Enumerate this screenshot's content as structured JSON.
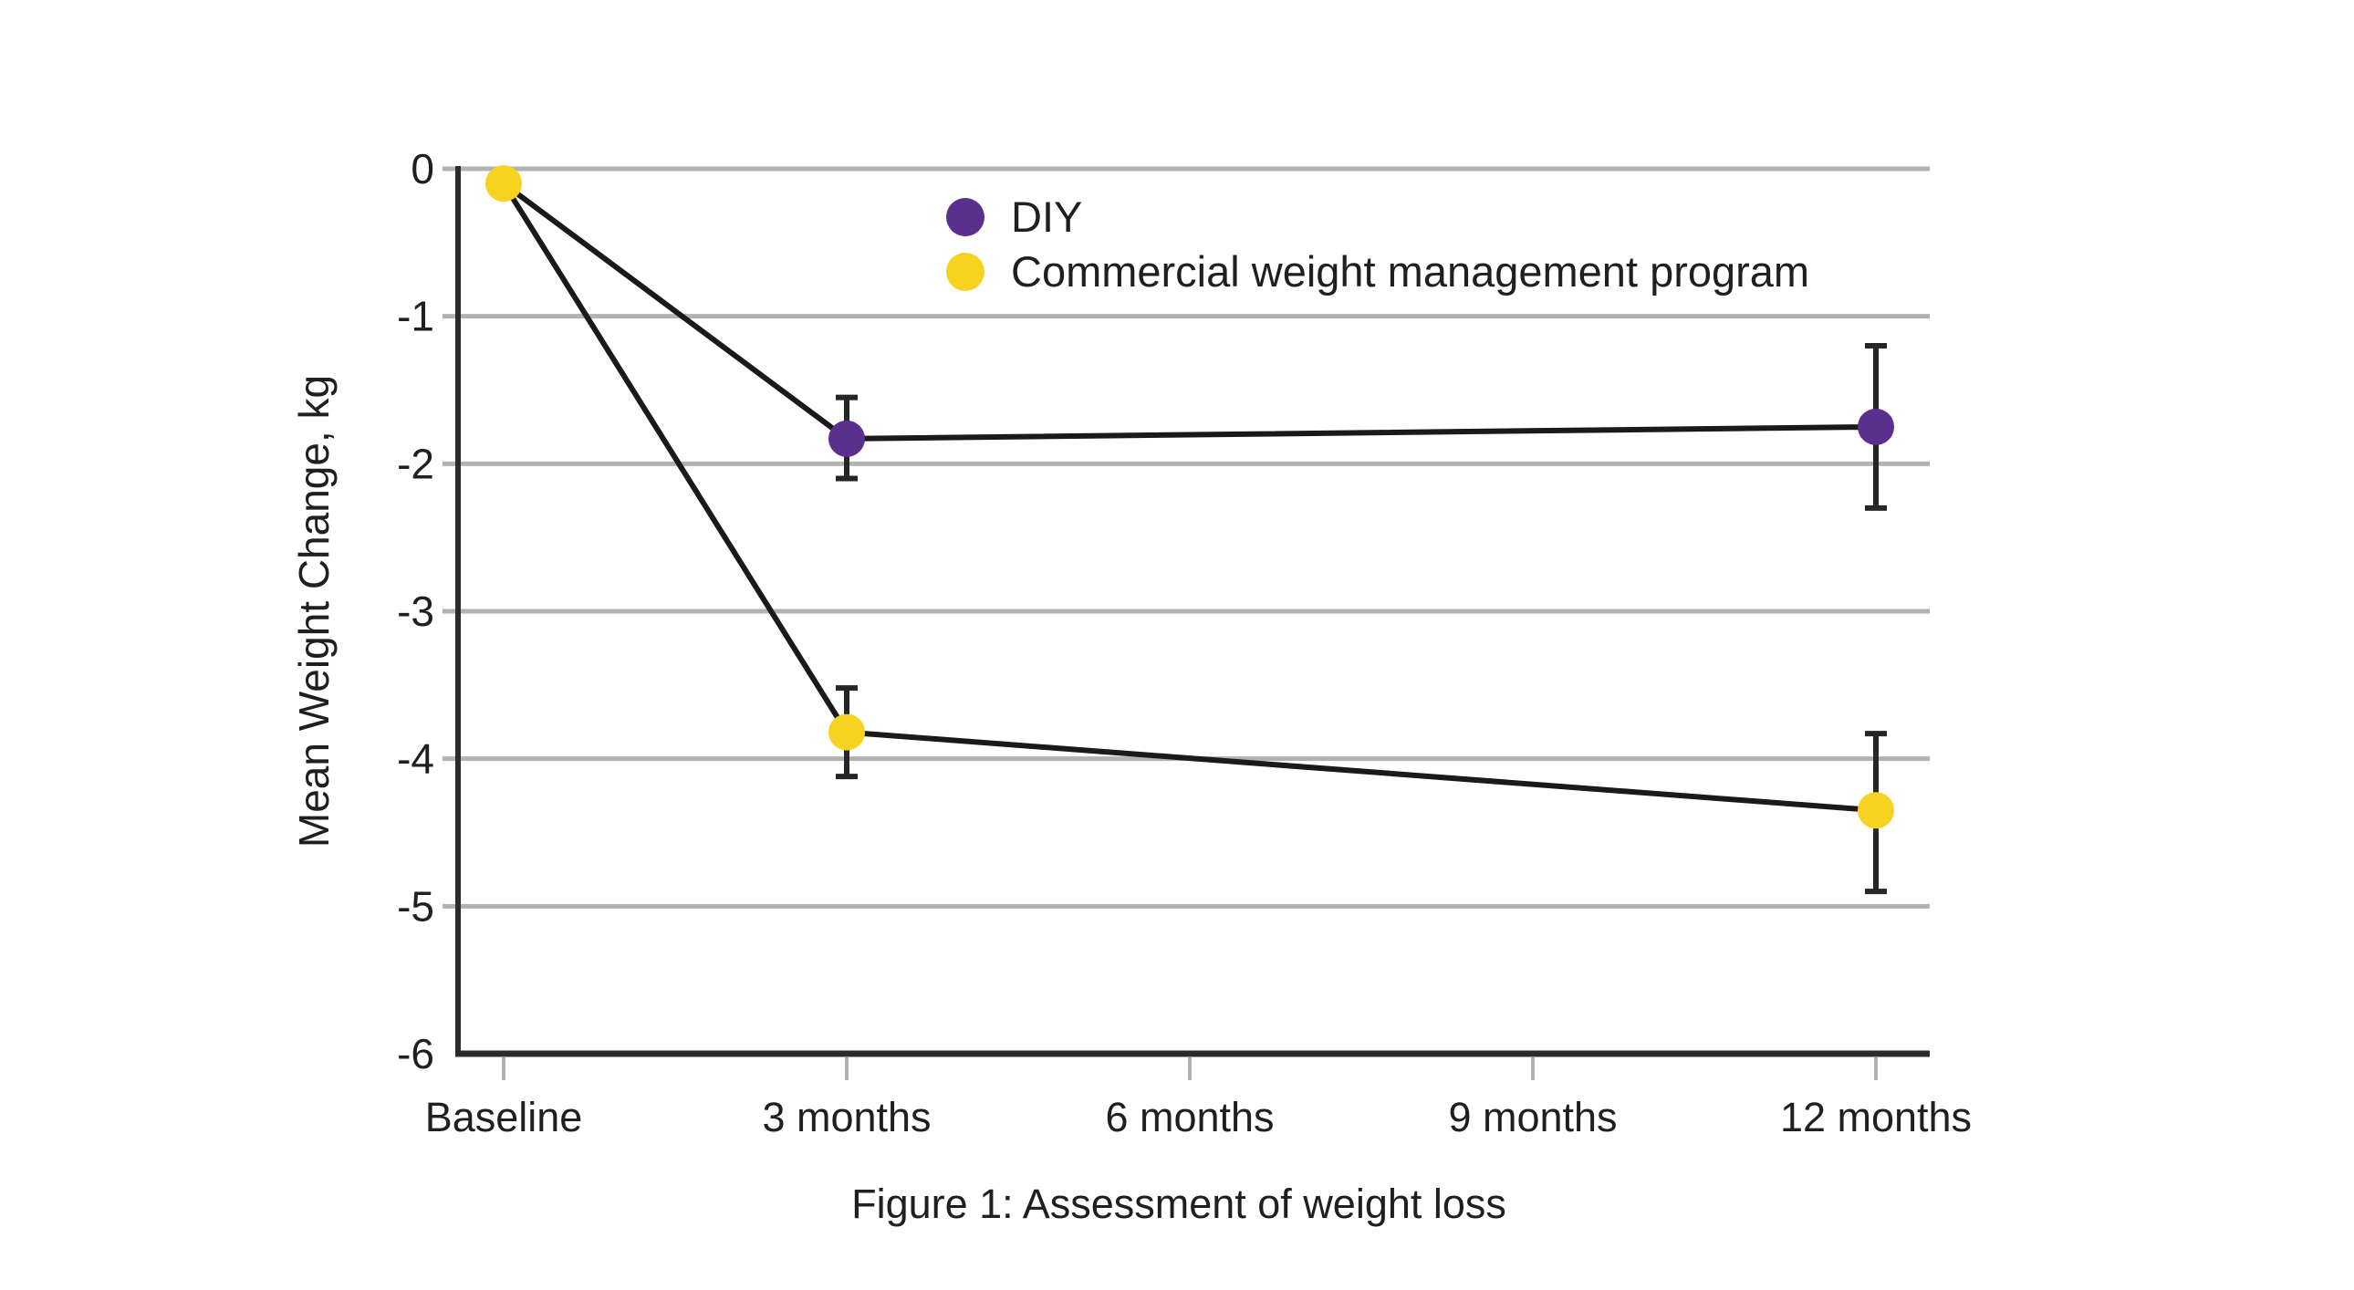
{
  "caption": "Figure 1: Assessment of weight loss",
  "chart_data": {
    "type": "line",
    "title": "Figure 1: Assessment of weight loss",
    "xlabel": "",
    "ylabel": "Mean Weight Change, kg",
    "categories": [
      "Baseline",
      "3 months",
      "6 months",
      "9 months",
      "12 months"
    ],
    "ylim": [
      -6,
      0
    ],
    "yticks": [
      0,
      -1,
      -2,
      -3,
      -4,
      -5,
      -6
    ],
    "ytick_labels": [
      "0",
      "-1",
      "-2",
      "-3",
      "-4",
      "-5",
      "-6"
    ],
    "grid": true,
    "legend_position": "inside-top-center",
    "series": [
      {
        "name": "DIY",
        "color": "#5a2f8d",
        "points": [
          {
            "category": "Baseline",
            "x_index": 0,
            "value": -0.1,
            "ci_high": null,
            "ci_low": null,
            "marker": false
          },
          {
            "category": "3 months",
            "x_index": 1,
            "value": -1.83,
            "ci_high": -1.55,
            "ci_low": -2.1,
            "marker": true
          },
          {
            "category": "12 months",
            "x_index": 4,
            "value": -1.75,
            "ci_high": -1.2,
            "ci_low": -2.3,
            "marker": true
          }
        ]
      },
      {
        "name": "Commercial weight management program",
        "color": "#f5d320",
        "points": [
          {
            "category": "Baseline",
            "x_index": 0,
            "value": -0.1,
            "ci_high": null,
            "ci_low": null,
            "marker": true
          },
          {
            "category": "3 months",
            "x_index": 1,
            "value": -3.82,
            "ci_high": -3.52,
            "ci_low": -4.12,
            "marker": true
          },
          {
            "category": "12 months",
            "x_index": 4,
            "value": -4.35,
            "ci_high": -3.83,
            "ci_low": -4.9,
            "marker": true
          }
        ]
      }
    ]
  },
  "style": {
    "background": "#ffffff",
    "grid_color": "#b2b2b2",
    "axis_color": "#2b2b2b",
    "line_color": "#1a1a1a",
    "errorbar_color": "#262626",
    "text_color": "#1f1f1f"
  }
}
